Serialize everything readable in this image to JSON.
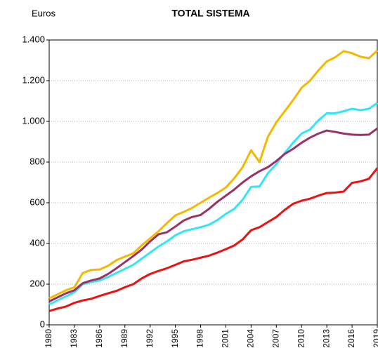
{
  "chart_data": {
    "type": "line",
    "title": "TOTAL SISTEMA",
    "y_label": "Euros",
    "x": [
      1980,
      1981,
      1982,
      1983,
      1984,
      1985,
      1986,
      1987,
      1988,
      1989,
      1990,
      1991,
      1992,
      1993,
      1994,
      1995,
      1996,
      1997,
      1998,
      1999,
      2000,
      2001,
      2002,
      2003,
      2004,
      2005,
      2006,
      2007,
      2008,
      2009,
      2010,
      2011,
      2012,
      2013,
      2014,
      2015,
      2016,
      2017,
      2018,
      2019
    ],
    "series": [
      {
        "color": "#f5b800",
        "values": [
          130,
          150,
          170,
          185,
          255,
          270,
          272,
          290,
          318,
          335,
          352,
          390,
          425,
          460,
          500,
          538,
          555,
          575,
          600,
          625,
          648,
          675,
          720,
          775,
          858,
          800,
          925,
          995,
          1050,
          1105,
          1165,
          1200,
          1250,
          1295,
          1315,
          1345,
          1335,
          1318,
          1310,
          1348
        ]
      },
      {
        "color": "#33e6f2",
        "values": [
          100,
          120,
          140,
          160,
          200,
          210,
          218,
          235,
          255,
          275,
          295,
          325,
          355,
          385,
          410,
          440,
          460,
          470,
          480,
          492,
          515,
          545,
          570,
          615,
          678,
          680,
          745,
          790,
          845,
          895,
          940,
          960,
          1005,
          1040,
          1040,
          1050,
          1062,
          1055,
          1062,
          1090
        ]
      },
      {
        "color": "#993366",
        "values": [
          115,
          135,
          155,
          170,
          205,
          218,
          228,
          250,
          278,
          308,
          338,
          370,
          410,
          445,
          455,
          483,
          513,
          530,
          540,
          570,
          605,
          635,
          665,
          700,
          730,
          755,
          775,
          805,
          840,
          865,
          895,
          920,
          940,
          955,
          948,
          940,
          935,
          933,
          935,
          965
        ]
      },
      {
        "color": "#ee1111",
        "values": [
          68,
          80,
          90,
          108,
          120,
          128,
          142,
          155,
          167,
          185,
          200,
          228,
          250,
          265,
          278,
          295,
          312,
          320,
          330,
          340,
          355,
          372,
          390,
          420,
          465,
          480,
          505,
          530,
          565,
          595,
          610,
          620,
          635,
          648,
          650,
          655,
          698,
          705,
          718,
          770
        ]
      }
    ],
    "xlim": [
      1980,
      2019
    ],
    "xticks": [
      1980,
      1983,
      1986,
      1989,
      1992,
      1995,
      1998,
      2001,
      2004,
      2007,
      2010,
      2013,
      2016,
      2019
    ],
    "ylim": [
      0,
      1400
    ],
    "yticks": [
      0,
      200,
      400,
      600,
      800,
      {
        "value": 1000,
        "label": "1.000"
      },
      {
        "value": 1200,
        "label": "1.200"
      },
      {
        "value": 1400,
        "label": "1.400"
      }
    ],
    "grid": true
  }
}
